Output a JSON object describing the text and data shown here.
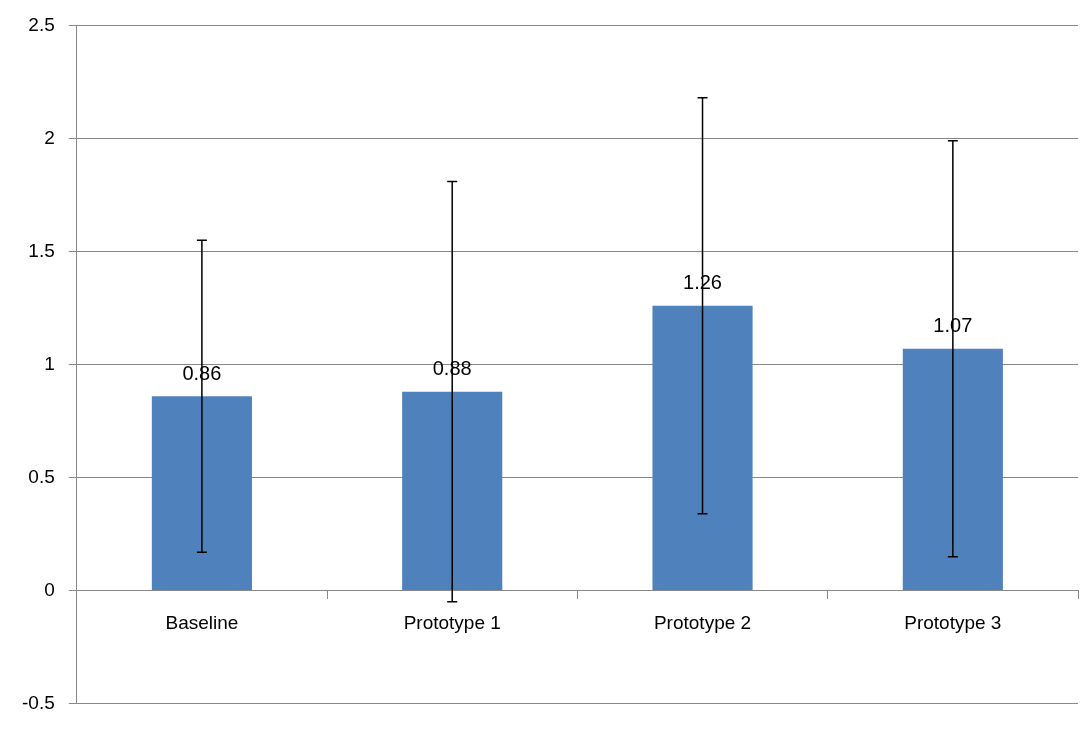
{
  "chart_data": {
    "type": "bar",
    "categories": [
      "Baseline",
      "Prototype 1",
      "Prototype 2",
      "Prototype 3"
    ],
    "values": [
      0.86,
      0.88,
      1.26,
      1.07
    ],
    "errors": [
      0.69,
      0.93,
      0.92,
      0.92
    ],
    "color": "#4f81bd",
    "ylim": [
      -0.5,
      2.5
    ],
    "yticks": [
      -0.5,
      0,
      0.5,
      1,
      1.5,
      2,
      2.5
    ],
    "grid": "y",
    "data_labels": true,
    "legend": false
  }
}
